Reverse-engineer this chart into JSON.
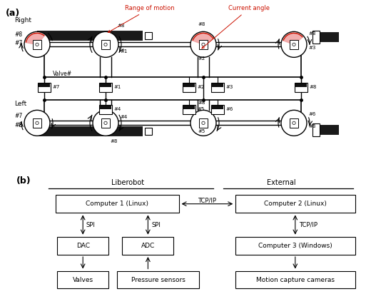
{
  "fig_width": 5.13,
  "fig_height": 4.12,
  "dpi": 100,
  "bg_color": "#ffffff",
  "red_color": "#cc1100",
  "pink_fill": "#f0a0a0",
  "gray_arm": "#1a1a1a",
  "gray_light": "#888888",
  "gray_box": "#aaaaaa",
  "label_a": "(a)",
  "label_b": "(b)",
  "label_right": "Right",
  "label_left": "Left",
  "label_range": "Range of motion",
  "label_current": "Current angle",
  "label_valve": "Valve#",
  "comp1": "Computer 1 (Linux)",
  "comp2": "Computer 2 (Linux)",
  "comp3": "Computer 3 (Windows)",
  "dac": "DAC",
  "adc": "ADC",
  "valves": "Valves",
  "pressure": "Pressure sensors",
  "motion": "Motion capture cameras",
  "liberobot": "Liberobot",
  "external": "External",
  "tcpip": "TCP/IP",
  "spi": "SPI"
}
